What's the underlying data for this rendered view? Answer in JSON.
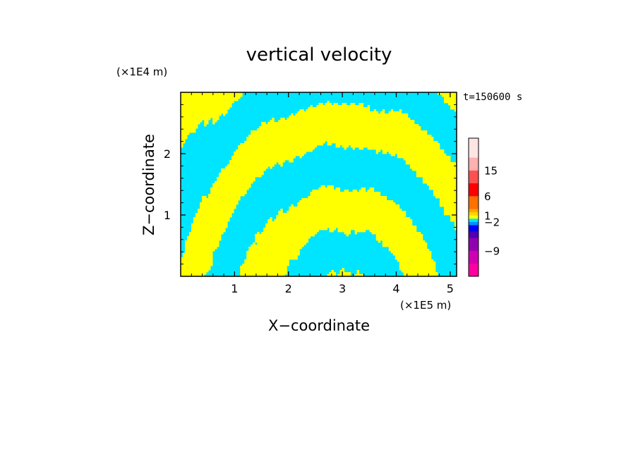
{
  "chart_data": {
    "type": "heatmap",
    "title": "vertical velocity",
    "xlabel": "X−coordinate",
    "ylabel": "Z−coordinate",
    "x_unit": "(×1E5 m)",
    "y_unit": "(×1E4 m)",
    "time_label": "t=150600 s",
    "xlim": [
      0,
      5.12
    ],
    "ylim": [
      0,
      3.0
    ],
    "x_ticks": [
      1,
      2,
      3,
      4,
      5
    ],
    "y_ticks": [
      1,
      2
    ],
    "fill_colors": {
      "positive": "#ffff00",
      "negative": "#00e5ff"
    },
    "colorbar": {
      "labels": [
        {
          "text": "15",
          "value": 15
        },
        {
          "text": "6",
          "value": 6
        },
        {
          "text": "1",
          "value": 1
        },
        {
          "text": "−2",
          "value": -2
        },
        {
          "text": "−9",
          "value": -9
        }
      ],
      "levels": [
        {
          "color": "#ff00a0",
          "weight": 2
        },
        {
          "color": "#d000b0",
          "weight": 2
        },
        {
          "color": "#9000b0",
          "weight": 2
        },
        {
          "color": "#5000b0",
          "weight": 1
        },
        {
          "color": "#0000ff",
          "weight": 1
        },
        {
          "color": "#0090ff",
          "weight": 0.5
        },
        {
          "color": "#00e5ff",
          "weight": 0.5
        },
        {
          "color": "#ffff00",
          "weight": 0.5
        },
        {
          "color": "#ffd700",
          "weight": 0.5
        },
        {
          "color": "#ffa500",
          "weight": 0.5
        },
        {
          "color": "#ff7000",
          "weight": 2
        },
        {
          "color": "#ff0000",
          "weight": 2
        },
        {
          "color": "#ff5050",
          "weight": 2
        },
        {
          "color": "#ffb0b0",
          "weight": 2
        },
        {
          "color": "#ffe4e4",
          "weight": 3
        }
      ]
    }
  }
}
